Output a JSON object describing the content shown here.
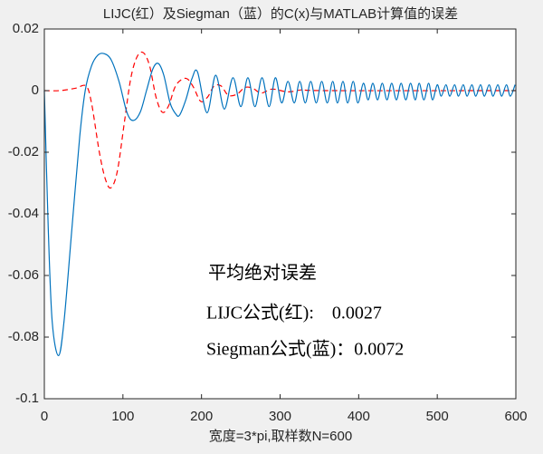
{
  "chart_data": {
    "type": "line",
    "title": "LIJC(红）及Siegman（蓝）的C(x)与MATLAB计算值的误差",
    "xlabel": "宽度=3*pi,取样数N=600",
    "xlim": [
      0,
      600
    ],
    "xticks": [
      0,
      100,
      200,
      300,
      400,
      500,
      600
    ],
    "ylim": [
      -0.1,
      0.02
    ],
    "yticks": [
      -0.1,
      -0.08,
      -0.06,
      -0.04,
      -0.02,
      0,
      0.02
    ],
    "annotations": [
      "平均绝对误差",
      "LIJC公式(红):    0.0027",
      "Siegman公式(蓝)：0.0072"
    ],
    "series": [
      {
        "name": "Siegman",
        "color": "#0072bd",
        "dash": false,
        "x": [
          0,
          5,
          10,
          18,
          25,
          35,
          45,
          52,
          60,
          68,
          76,
          85,
          95,
          105,
          113,
          122,
          130,
          138,
          145,
          152,
          160,
          167,
          172,
          180,
          188,
          195,
          207,
          218,
          229,
          240,
          250,
          259,
          268,
          277,
          286,
          294,
          302,
          310,
          318,
          325,
          332,
          339,
          346,
          353,
          360,
          367,
          373,
          380,
          386,
          393,
          399,
          406,
          412,
          418,
          424,
          430,
          436,
          442,
          448,
          454,
          460,
          466,
          472,
          477,
          483,
          489,
          494,
          500,
          505,
          511,
          516,
          522,
          527,
          533,
          538,
          544,
          549,
          555,
          560,
          566,
          571,
          577,
          582,
          588,
          593,
          599
        ],
        "values": [
          0,
          -0.045,
          -0.075,
          -0.086,
          -0.075,
          -0.045,
          -0.015,
          0,
          0.008,
          0.0115,
          0.012,
          0.01,
          0.003,
          -0.007,
          -0.0097,
          -0.007,
          0,
          0.007,
          0.0088,
          0.005,
          -0.004,
          -0.0075,
          -0.008,
          -0.003,
          0.004,
          0.006,
          -0.0072,
          0.005,
          -0.006,
          0.0042,
          -0.0052,
          0.0042,
          -0.0052,
          0.0042,
          -0.0052,
          0.0042,
          -0.004,
          0.003,
          -0.004,
          0.003,
          -0.004,
          0.003,
          -0.004,
          0.003,
          -0.004,
          0.003,
          -0.004,
          0.003,
          -0.004,
          0.003,
          -0.004,
          0.0024,
          -0.003,
          0.0024,
          -0.003,
          0.0024,
          -0.003,
          0.0024,
          -0.003,
          0.0024,
          -0.003,
          0.0024,
          -0.003,
          0.0024,
          -0.003,
          0.0024,
          -0.003,
          0.0019,
          -0.0018,
          0.0019,
          -0.0018,
          0.0019,
          -0.0018,
          0.0019,
          -0.0018,
          0.0019,
          -0.0018,
          0.0019,
          -0.0018,
          0.0019,
          -0.0018,
          0.0019,
          -0.0018,
          0.0019,
          -0.0018,
          0.0019
        ]
      },
      {
        "name": "LIJC",
        "color": "#ff0000",
        "dash": true,
        "x": [
          0,
          20,
          40,
          53,
          60,
          70,
          78,
          85,
          93,
          102,
          110,
          118,
          126,
          134,
          142,
          150,
          158,
          166,
          174,
          182,
          190,
          199,
          208,
          216,
          225,
          234,
          245,
          255,
          265,
          276,
          290,
          310,
          330,
          360,
          600
        ],
        "values": [
          0,
          0,
          0.0008,
          0.0015,
          -0.004,
          -0.02,
          -0.029,
          -0.0315,
          -0.026,
          -0.01,
          0.004,
          0.011,
          0.0123,
          0.008,
          -0.002,
          -0.007,
          -0.005,
          0.001,
          0.0035,
          0.0038,
          0.001,
          -0.0035,
          -0.002,
          0.0015,
          0.0015,
          -0.0015,
          -0.0012,
          0.001,
          0.0008,
          -0.0008,
          0.0005,
          -0.0004,
          0.0003,
          0,
          0
        ]
      }
    ]
  }
}
